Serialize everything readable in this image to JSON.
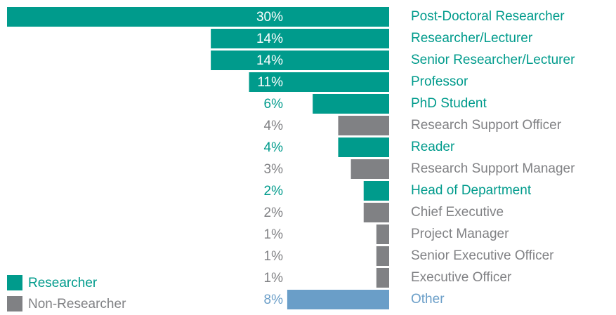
{
  "chart_data": {
    "type": "bar",
    "orientation": "horizontal-leftward",
    "categories": [
      "Post-Doctoral Researcher",
      "Researcher/Lecturer",
      "Senior Researcher/Lecturer",
      "Professor",
      "PhD Student",
      "Research Support Officer",
      "Reader",
      "Research Support Manager",
      "Head of Department",
      "Chief Executive",
      "Project Manager",
      "Senior Executive Officer",
      "Executive Officer",
      "Other"
    ],
    "values": [
      30,
      14,
      14,
      11,
      6,
      4,
      4,
      3,
      2,
      2,
      1,
      1,
      1,
      8
    ],
    "value_labels": [
      "30%",
      "14%",
      "14%",
      "11%",
      "6%",
      "4%",
      "4%",
      "3%",
      "2%",
      "2%",
      "1%",
      "1%",
      "1%",
      "8%"
    ],
    "colors": [
      "#009b8c",
      "#009b8c",
      "#009b8c",
      "#009b8c",
      "#009b8c",
      "#808184",
      "#009b8c",
      "#808184",
      "#009b8c",
      "#808184",
      "#808184",
      "#808184",
      "#808184",
      "#6a9ec8"
    ],
    "xlim": [
      0,
      30
    ],
    "legend": [
      {
        "name": "Researcher",
        "color": "#009b8c"
      },
      {
        "name": "Non-Researcher",
        "color": "#808184"
      }
    ]
  }
}
